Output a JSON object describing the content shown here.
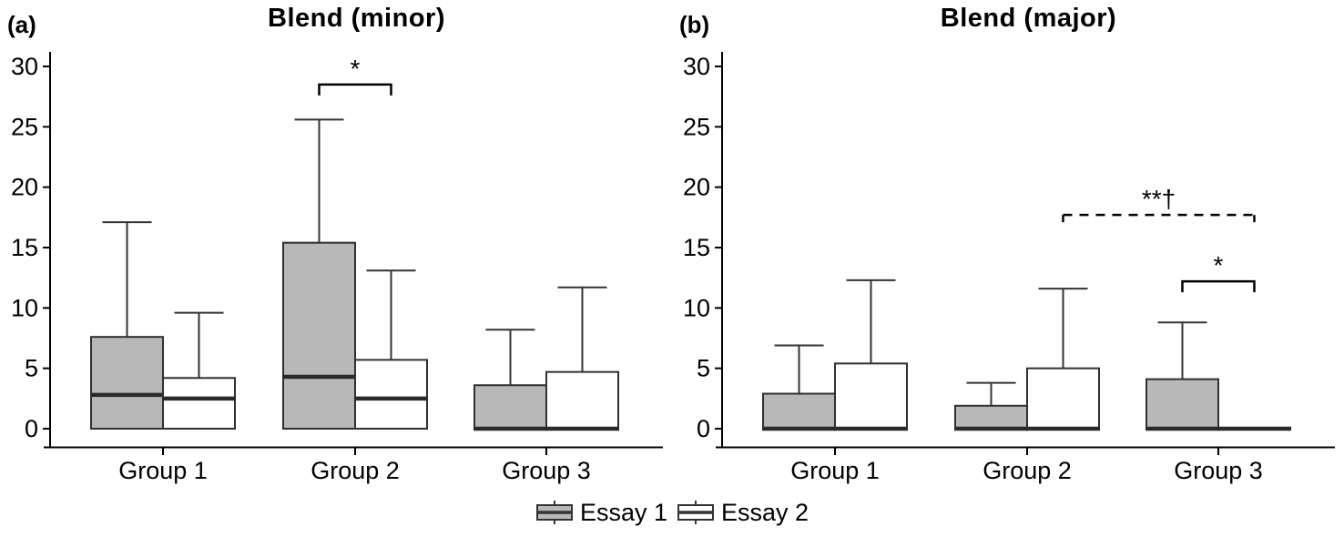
{
  "figure": {
    "background": "#ffffff"
  },
  "colors": {
    "essay1_fill": "#b8b8b8",
    "essay2_fill": "#ffffff",
    "box_stroke": "#303030",
    "median_stroke": "#2a2a2a",
    "whisker_stroke": "#333333",
    "axis_stroke": "#000000",
    "text_color": "#000000"
  },
  "legend": {
    "items": [
      {
        "label": "Essay 1",
        "fill": "#b8b8b8"
      },
      {
        "label": "Essay 2",
        "fill": "#ffffff"
      }
    ]
  },
  "chart_data": [
    {
      "type": "boxplot",
      "panel_label": "(a)",
      "title": "Blend (minor)",
      "xlabel": "",
      "ylabel": "",
      "ylim": [
        -1.5,
        31.5
      ],
      "yticks": [
        0,
        5,
        10,
        15,
        20,
        25,
        30
      ],
      "grid": false,
      "categories": [
        "Group 1",
        "Group 2",
        "Group 3"
      ],
      "series": [
        {
          "name": "Essay 1",
          "fill": "#b8b8b8",
          "boxes": [
            {
              "whisker_low": 0,
              "q1": 0,
              "median": 2.8,
              "q3": 7.6,
              "whisker_high": 17.1
            },
            {
              "whisker_low": 0,
              "q1": 0,
              "median": 4.3,
              "q3": 15.4,
              "whisker_high": 25.6
            },
            {
              "whisker_low": 0,
              "q1": 0,
              "median": 0,
              "q3": 3.6,
              "whisker_high": 8.2
            }
          ]
        },
        {
          "name": "Essay 2",
          "fill": "#ffffff",
          "boxes": [
            {
              "whisker_low": 0,
              "q1": 0,
              "median": 2.5,
              "q3": 4.2,
              "whisker_high": 9.6
            },
            {
              "whisker_low": 0,
              "q1": 0,
              "median": 2.5,
              "q3": 5.7,
              "whisker_high": 13.1
            },
            {
              "whisker_low": 0,
              "q1": 0,
              "median": 0,
              "q3": 4.7,
              "whisker_high": 11.7
            }
          ]
        }
      ],
      "annotations": [
        {
          "label": "*",
          "style": "solid",
          "from": {
            "group": 1,
            "series": 0
          },
          "to": {
            "group": 1,
            "series": 1
          },
          "y": 28.5
        }
      ]
    },
    {
      "type": "boxplot",
      "panel_label": "(b)",
      "title": "Blend (major)",
      "xlabel": "",
      "ylabel": "",
      "ylim": [
        -1.5,
        31.5
      ],
      "yticks": [
        0,
        5,
        10,
        15,
        20,
        25,
        30
      ],
      "grid": false,
      "categories": [
        "Group 1",
        "Group 2",
        "Group 3"
      ],
      "series": [
        {
          "name": "Essay 1",
          "fill": "#b8b8b8",
          "boxes": [
            {
              "whisker_low": 0,
              "q1": 0,
              "median": 0,
              "q3": 2.9,
              "whisker_high": 6.9
            },
            {
              "whisker_low": 0,
              "q1": 0,
              "median": 0,
              "q3": 1.9,
              "whisker_high": 3.8
            },
            {
              "whisker_low": 0,
              "q1": 0,
              "median": 0,
              "q3": 4.1,
              "whisker_high": 8.8
            }
          ]
        },
        {
          "name": "Essay 2",
          "fill": "#ffffff",
          "boxes": [
            {
              "whisker_low": 0,
              "q1": 0,
              "median": 0,
              "q3": 5.4,
              "whisker_high": 12.3
            },
            {
              "whisker_low": 0,
              "q1": 0,
              "median": 0,
              "q3": 5.0,
              "whisker_high": 11.6
            },
            {
              "whisker_low": 0,
              "q1": 0,
              "median": 0,
              "q3": 0,
              "whisker_high": 0
            }
          ]
        }
      ],
      "annotations": [
        {
          "label": "**†",
          "style": "dashed",
          "from": {
            "group": 1,
            "series": 1
          },
          "to": {
            "group": 2,
            "series": 1
          },
          "y": 17.7
        },
        {
          "label": "*",
          "style": "solid",
          "from": {
            "group": 2,
            "series": 0
          },
          "to": {
            "group": 2,
            "series": 1
          },
          "y": 12.2
        }
      ]
    }
  ]
}
